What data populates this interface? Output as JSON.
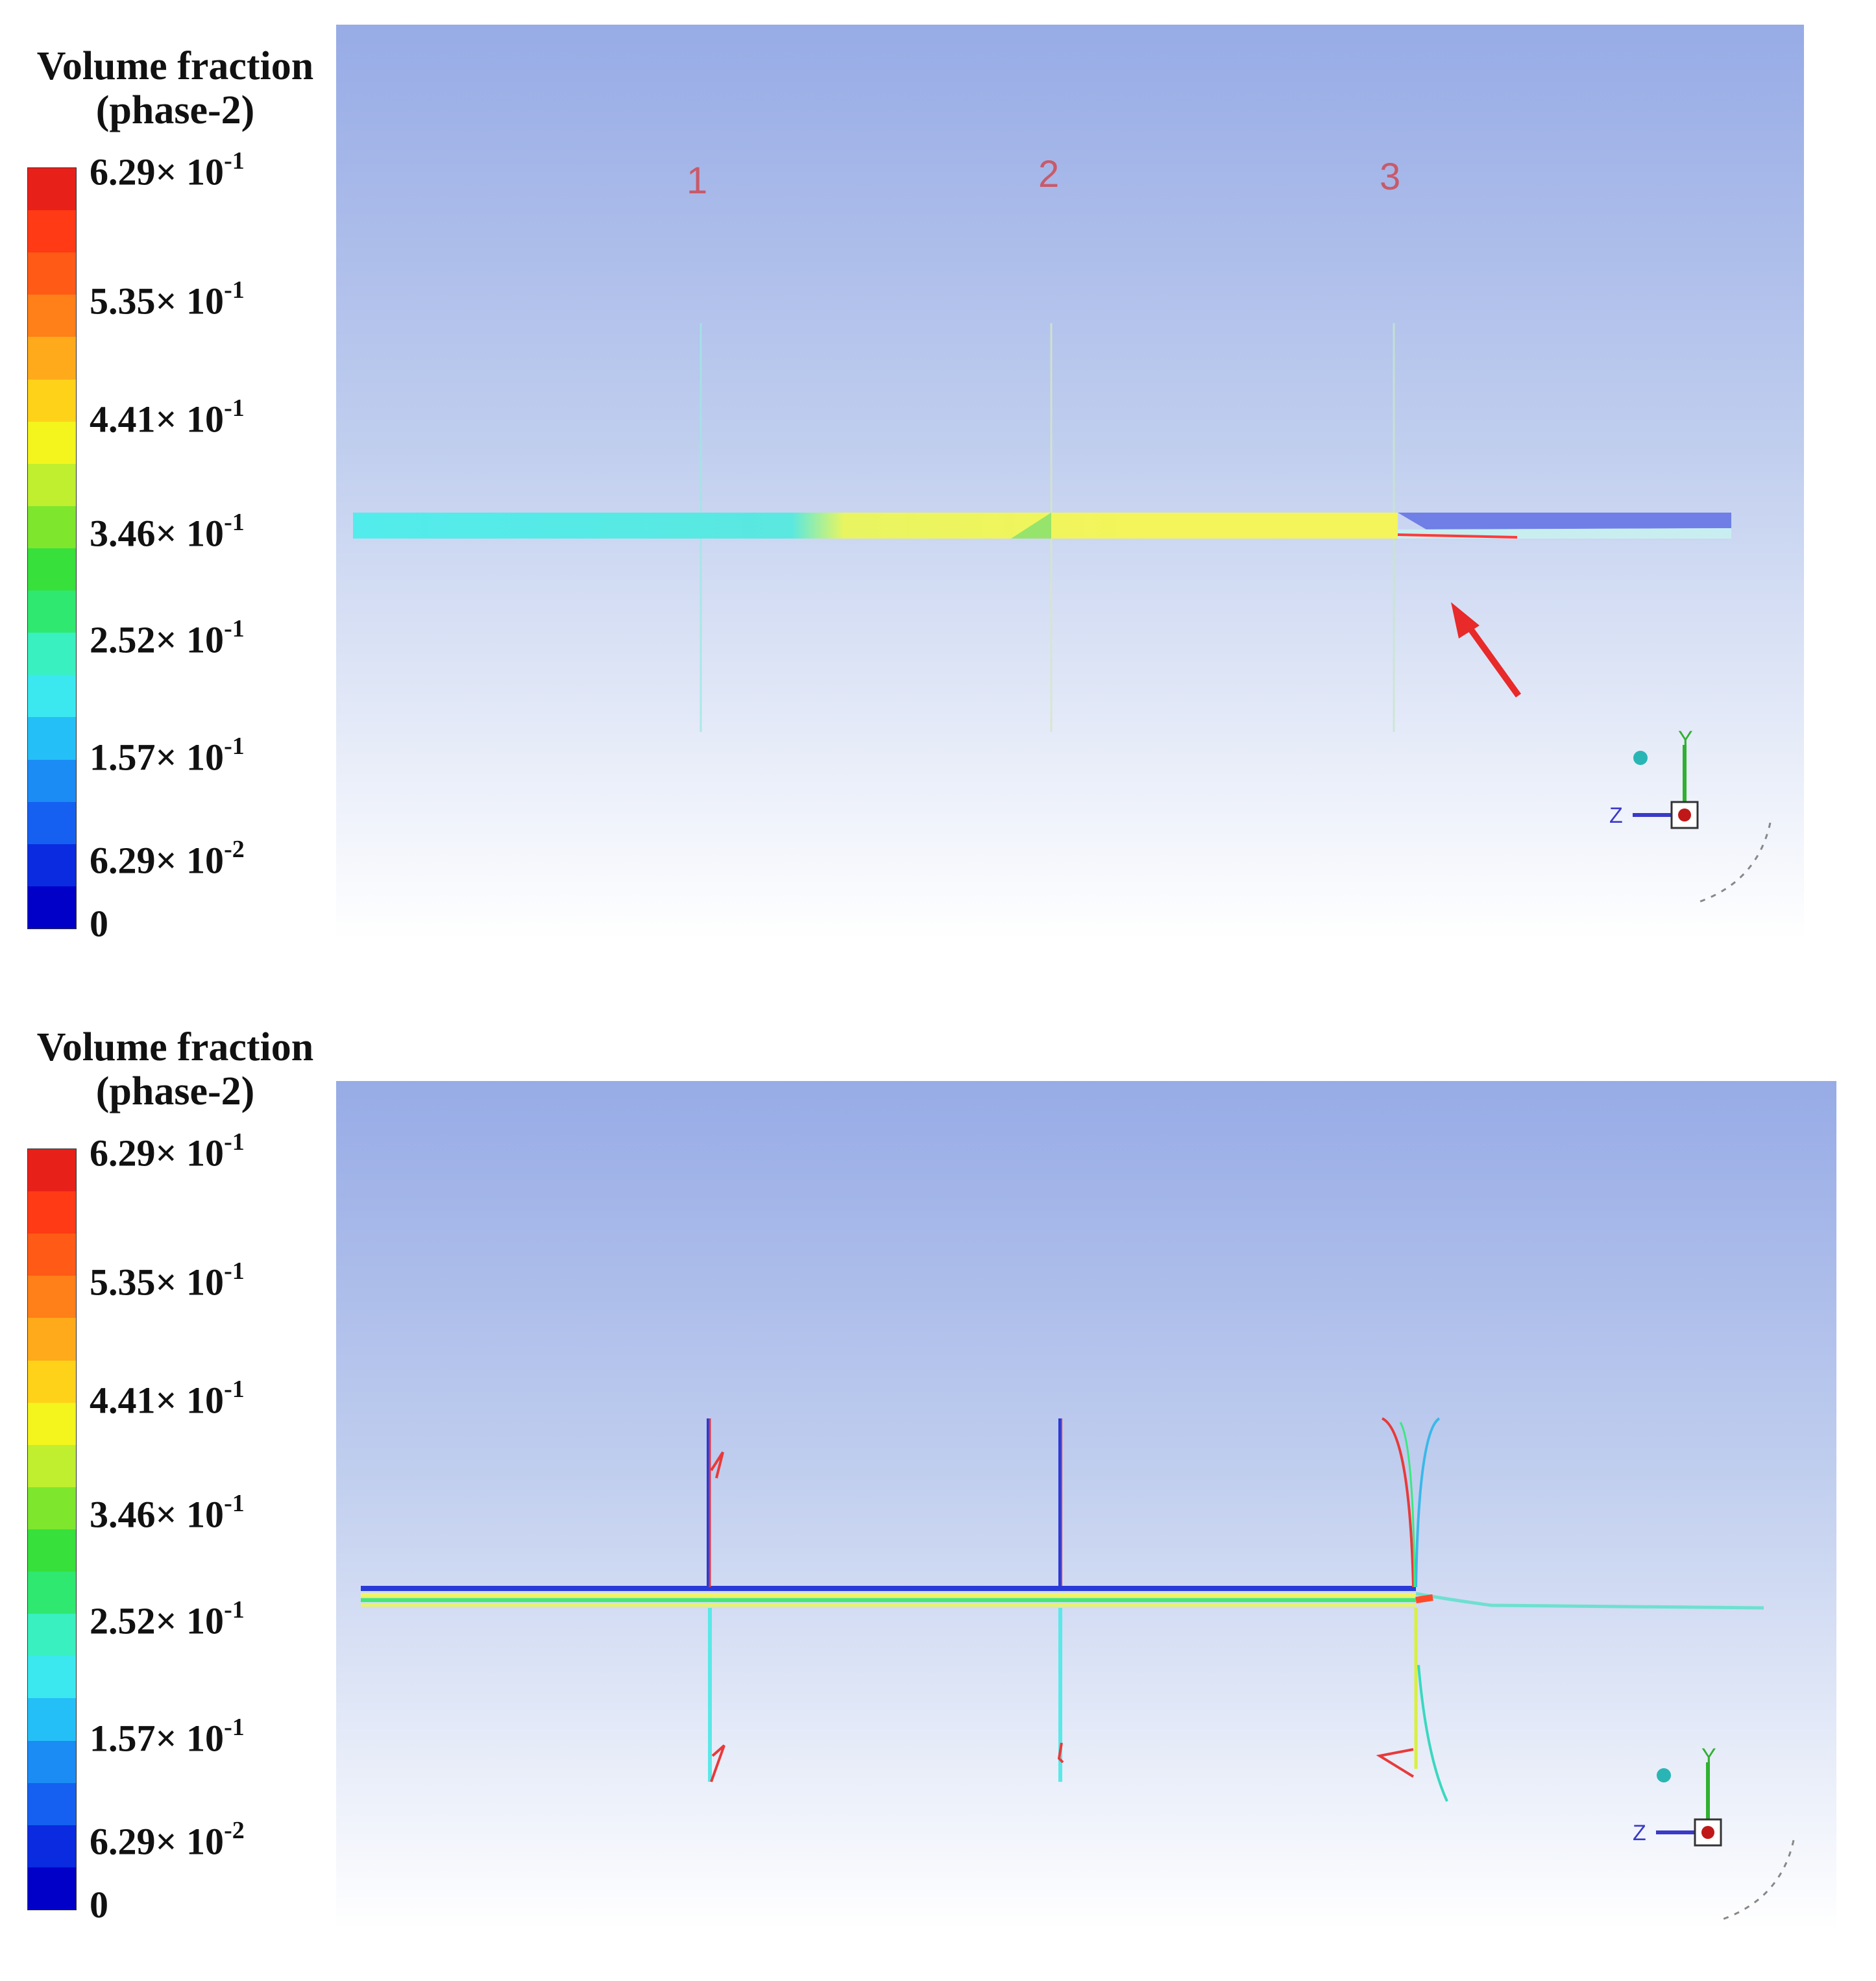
{
  "legend": {
    "title_line1": "Volume fraction",
    "title_line2": "(phase-2)",
    "ticks": [
      {
        "mantissa": "6.29× 10",
        "exp": "-1"
      },
      {
        "mantissa": "5.35× 10",
        "exp": "-1"
      },
      {
        "mantissa": "4.41× 10",
        "exp": "-1"
      },
      {
        "mantissa": "3.46× 10",
        "exp": "-1"
      },
      {
        "mantissa": "2.52× 10",
        "exp": "-1"
      },
      {
        "mantissa": "1.57× 10",
        "exp": "-1"
      },
      {
        "mantissa": "6.29× 10",
        "exp": "-2"
      },
      {
        "mantissa": "0",
        "exp": ""
      }
    ],
    "colors": [
      "#0000c8",
      "#0a2be0",
      "#1560f0",
      "#1c8cf5",
      "#25bff7",
      "#3be8f0",
      "#39f0c0",
      "#2fe870",
      "#37e03a",
      "#7fe62e",
      "#c0ef2f",
      "#f3f51d",
      "#ffd21a",
      "#ffaa1a",
      "#ff7f18",
      "#ff5a16",
      "#ff3a14",
      "#e8201a"
    ]
  },
  "panel_top": {
    "labels": [
      "1",
      "2",
      "3"
    ],
    "arrow": true
  },
  "panel_bottom": {
    "labels": []
  },
  "axes": {
    "y_label": "Y",
    "z_label": "Z"
  }
}
